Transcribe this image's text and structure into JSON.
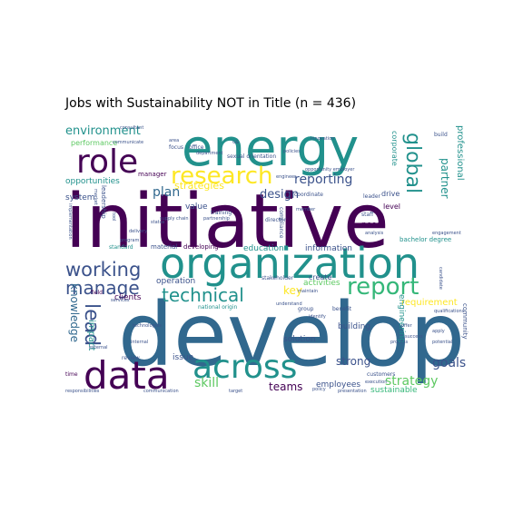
{
  "title": "Jobs with Sustainability NOT in Title (n = 436)",
  "palette": [
    "#440154",
    "#3b528b",
    "#21918c",
    "#5ec962",
    "#fde725",
    "#31688e",
    "#35b779",
    "#482878"
  ],
  "words": [
    {
      "text": "develop",
      "weight": 100,
      "color": "#31688e",
      "rotate": 0
    },
    {
      "text": "initiative",
      "weight": 95,
      "color": "#440154",
      "rotate": 0
    },
    {
      "text": "organization",
      "weight": 62,
      "color": "#21918c",
      "rotate": 0
    },
    {
      "text": "energy",
      "weight": 60,
      "color": "#21918c",
      "rotate": 0
    },
    {
      "text": "data",
      "weight": 50,
      "color": "#440154",
      "rotate": 0
    },
    {
      "text": "across",
      "weight": 44,
      "color": "#21918c",
      "rotate": 0
    },
    {
      "text": "role",
      "weight": 46,
      "color": "#440154",
      "rotate": 0
    },
    {
      "text": "research",
      "weight": 34,
      "color": "#fde725",
      "rotate": 0
    },
    {
      "text": "report",
      "weight": 30,
      "color": "#35b779",
      "rotate": 0
    },
    {
      "text": "working",
      "weight": 26,
      "color": "#3b528b",
      "rotate": 0
    },
    {
      "text": "manage",
      "weight": 24,
      "color": "#3b528b",
      "rotate": 0
    },
    {
      "text": "technical",
      "weight": 24,
      "color": "#21918c",
      "rotate": 0
    },
    {
      "text": "global",
      "weight": 26,
      "color": "#21918c",
      "rotate": 90
    },
    {
      "text": "lead",
      "weight": 26,
      "color": "#3b528b",
      "rotate": 90
    },
    {
      "text": "environment",
      "weight": 16,
      "color": "#21918c",
      "rotate": 0
    },
    {
      "text": "reporting",
      "weight": 16,
      "color": "#3b528b",
      "rotate": 0
    },
    {
      "text": "design",
      "weight": 15,
      "color": "#3b528b",
      "rotate": 0
    },
    {
      "text": "plan",
      "weight": 16,
      "color": "#31688e",
      "rotate": 0
    },
    {
      "text": "strategy",
      "weight": 16,
      "color": "#5ec962",
      "rotate": 0
    },
    {
      "text": "skill",
      "weight": 16,
      "color": "#5ec962",
      "rotate": 0
    },
    {
      "text": "teams",
      "weight": 14,
      "color": "#440154",
      "rotate": 0
    },
    {
      "text": "goals",
      "weight": 16,
      "color": "#3b528b",
      "rotate": 0
    },
    {
      "text": "strong",
      "weight": 14,
      "color": "#3b528b",
      "rotate": 0
    },
    {
      "text": "key",
      "weight": 14,
      "color": "#fde725",
      "rotate": 0
    },
    {
      "text": "strategies",
      "weight": 13,
      "color": "#fde725",
      "rotate": 0
    },
    {
      "text": "partner",
      "weight": 14,
      "color": "#21918c",
      "rotate": 90
    },
    {
      "text": "knowledge",
      "weight": 14,
      "color": "#31688e",
      "rotate": 90
    },
    {
      "text": "impact",
      "weight": 12,
      "color": "#21918c",
      "rotate": 90
    },
    {
      "text": "professional",
      "weight": 12,
      "color": "#21918c",
      "rotate": 90
    },
    {
      "text": "requirement",
      "weight": 11,
      "color": "#fde725",
      "rotate": 0
    },
    {
      "text": "opportunities",
      "weight": 10,
      "color": "#21918c",
      "rotate": 0
    },
    {
      "text": "performance",
      "weight": 9,
      "color": "#5ec962",
      "rotate": 0
    },
    {
      "text": "solution",
      "weight": 9,
      "color": "#3b528b",
      "rotate": 0
    },
    {
      "text": "building",
      "weight": 9,
      "color": "#3b528b",
      "rotate": 0
    },
    {
      "text": "sustainable",
      "weight": 9,
      "color": "#35b779",
      "rotate": 0
    },
    {
      "text": "employees",
      "weight": 9,
      "color": "#3b528b",
      "rotate": 0
    },
    {
      "text": "clients",
      "weight": 9,
      "color": "#440154",
      "rotate": 0
    },
    {
      "text": "operation",
      "weight": 9,
      "color": "#3b528b",
      "rotate": 0
    },
    {
      "text": "education",
      "weight": 9,
      "color": "#21918c",
      "rotate": 0
    },
    {
      "text": "information",
      "weight": 9,
      "color": "#3b528b",
      "rotate": 0
    },
    {
      "text": "activities",
      "weight": 9,
      "color": "#5ec962",
      "rotate": 0
    },
    {
      "text": "need",
      "weight": 9,
      "color": "#440154",
      "rotate": 0
    },
    {
      "text": "system",
      "weight": 9,
      "color": "#3b528b",
      "rotate": 0
    },
    {
      "text": "issue",
      "weight": 9,
      "color": "#3b528b",
      "rotate": 0
    },
    {
      "text": "value",
      "weight": 9,
      "color": "#3b528b",
      "rotate": 0
    },
    {
      "text": "create",
      "weight": 8,
      "color": "#3b528b",
      "rotate": 0
    },
    {
      "text": "drive",
      "weight": 8,
      "color": "#3b528b",
      "rotate": 0
    },
    {
      "text": "level",
      "weight": 8,
      "color": "#440154",
      "rotate": 0
    },
    {
      "text": "engineering",
      "weight": 9,
      "color": "#21918c",
      "rotate": 90
    },
    {
      "text": "corporate",
      "weight": 8,
      "color": "#21918c",
      "rotate": 90
    },
    {
      "text": "community",
      "weight": 7,
      "color": "#3b528b",
      "rotate": 90
    },
    {
      "text": "leadership",
      "weight": 7,
      "color": "#3b528b",
      "rotate": 90
    },
    {
      "text": "manager",
      "weight": 7,
      "color": "#440154",
      "rotate": 0
    },
    {
      "text": "developing",
      "weight": 7,
      "color": "#440154",
      "rotate": 0
    },
    {
      "text": "material",
      "weight": 7,
      "color": "#3b528b",
      "rotate": 0
    },
    {
      "text": "standard",
      "weight": 6,
      "color": "#21918c",
      "rotate": 0
    },
    {
      "text": "bachelor degree",
      "weight": 7,
      "color": "#21918c",
      "rotate": 0
    },
    {
      "text": "stakeholder",
      "weight": 6,
      "color": "#3b528b",
      "rotate": 0
    },
    {
      "text": "director",
      "weight": 6,
      "color": "#3b528b",
      "rotate": 0
    },
    {
      "text": "training",
      "weight": 6,
      "color": "#3b528b",
      "rotate": 0
    },
    {
      "text": "group",
      "weight": 6,
      "color": "#3b528b",
      "rotate": 0
    },
    {
      "text": "field",
      "weight": 6,
      "color": "#440154",
      "rotate": 0
    },
    {
      "text": "time",
      "weight": 6,
      "color": "#440154",
      "rotate": 0
    },
    {
      "text": "customers",
      "weight": 6,
      "color": "#3b528b",
      "rotate": 0
    },
    {
      "text": "staff",
      "weight": 6,
      "color": "#3b528b",
      "rotate": 0
    },
    {
      "text": "leader",
      "weight": 6,
      "color": "#3b528b",
      "rotate": 0
    },
    {
      "text": "coordinate",
      "weight": 6,
      "color": "#3b528b",
      "rotate": 0
    },
    {
      "text": "focus",
      "weight": 6,
      "color": "#3b528b",
      "rotate": 0
    },
    {
      "text": "office",
      "weight": 6,
      "color": "#3b528b",
      "rotate": 0
    },
    {
      "text": "us",
      "weight": 6,
      "color": "#3b528b",
      "rotate": 0
    },
    {
      "text": "build",
      "weight": 6,
      "color": "#3b528b",
      "rotate": 0
    },
    {
      "text": "benefit",
      "weight": 6,
      "color": "#3b528b",
      "rotate": 0
    },
    {
      "text": "review",
      "weight": 6,
      "color": "#3b528b",
      "rotate": 0
    },
    {
      "text": "national origin",
      "weight": 6,
      "color": "#21918c",
      "rotate": 0
    },
    {
      "text": "sexual orientation",
      "weight": 6,
      "color": "#3b528b",
      "rotate": 0
    },
    {
      "text": "compliance",
      "weight": 6,
      "color": "#3b528b",
      "rotate": 90
    },
    {
      "text": "responsibilities",
      "weight": 5,
      "color": "#3b528b",
      "rotate": 0
    },
    {
      "text": "communication",
      "weight": 5,
      "color": "#3b528b",
      "rotate": 0
    },
    {
      "text": "maintain",
      "weight": 5,
      "color": "#3b528b",
      "rotate": 0
    },
    {
      "text": "services",
      "weight": 5,
      "color": "#3b528b",
      "rotate": 0
    },
    {
      "text": "status",
      "weight": 5,
      "color": "#3b528b",
      "rotate": 0
    },
    {
      "text": "analysis",
      "weight": 5,
      "color": "#3b528b",
      "rotate": 0
    },
    {
      "text": "policies",
      "weight": 5,
      "color": "#3b528b",
      "rotate": 0
    },
    {
      "text": "implementation",
      "weight": 5,
      "color": "#3b528b",
      "rotate": 90
    },
    {
      "text": "department",
      "weight": 5,
      "color": "#3b528b",
      "rotate": 0
    },
    {
      "text": "engineer",
      "weight": 5,
      "color": "#3b528b",
      "rotate": 0
    },
    {
      "text": "member",
      "weight": 5,
      "color": "#3b528b",
      "rotate": 0
    },
    {
      "text": "candidate",
      "weight": 5,
      "color": "#3b528b",
      "rotate": 90
    },
    {
      "text": "apply",
      "weight": 5,
      "color": "#3b528b",
      "rotate": 0
    },
    {
      "text": "identify",
      "weight": 5,
      "color": "#3b528b",
      "rotate": 0
    },
    {
      "text": "internal",
      "weight": 5,
      "color": "#3b528b",
      "rotate": 0
    },
    {
      "text": "area",
      "weight": 5,
      "color": "#3b528b",
      "rotate": 0
    },
    {
      "text": "market",
      "weight": 5,
      "color": "#3b528b",
      "rotate": 90
    },
    {
      "text": "tool",
      "weight": 5,
      "color": "#3b528b",
      "rotate": 90
    },
    {
      "text": "delivery",
      "weight": 5,
      "color": "#3b528b",
      "rotate": 0
    },
    {
      "text": "process",
      "weight": 5,
      "color": "#3b528b",
      "rotate": 0
    },
    {
      "text": "supply chain",
      "weight": 5,
      "color": "#3b528b",
      "rotate": 0
    },
    {
      "text": "program",
      "weight": 5,
      "color": "#3b528b",
      "rotate": 0
    },
    {
      "text": "partnership",
      "weight": 5,
      "color": "#3b528b",
      "rotate": 0
    },
    {
      "text": "technologies",
      "weight": 5,
      "color": "#3b528b",
      "rotate": 0
    },
    {
      "text": "innovation",
      "weight": 5,
      "color": "#3b528b",
      "rotate": 0
    },
    {
      "text": "execution",
      "weight": 5,
      "color": "#3b528b",
      "rotate": 0
    },
    {
      "text": "engagement",
      "weight": 5,
      "color": "#3b528b",
      "rotate": 0
    },
    {
      "text": "potential",
      "weight": 5,
      "color": "#3b528b",
      "rotate": 0
    },
    {
      "text": "opportunity employer",
      "weight": 5,
      "color": "#3b528b",
      "rotate": 0
    },
    {
      "text": "communicate",
      "weight": 5,
      "color": "#3b528b",
      "rotate": 0
    },
    {
      "text": "external",
      "weight": 5,
      "color": "#3b528b",
      "rotate": 0
    },
    {
      "text": "qualifications",
      "weight": 5,
      "color": "#3b528b",
      "rotate": 0
    },
    {
      "text": "policy",
      "weight": 5,
      "color": "#3b528b",
      "rotate": 0
    },
    {
      "text": "presentation",
      "weight": 5,
      "color": "#3b528b",
      "rotate": 0
    },
    {
      "text": "success",
      "weight": 5,
      "color": "#3b528b",
      "rotate": 0
    },
    {
      "text": "understand",
      "weight": 5,
      "color": "#3b528b",
      "rotate": 0
    },
    {
      "text": "offer",
      "weight": 5,
      "color": "#3b528b",
      "rotate": 0
    },
    {
      "text": "consultant",
      "weight": 5,
      "color": "#3b528b",
      "rotate": 0
    },
    {
      "text": "target",
      "weight": 5,
      "color": "#3b528b",
      "rotate": 0
    }
  ]
}
